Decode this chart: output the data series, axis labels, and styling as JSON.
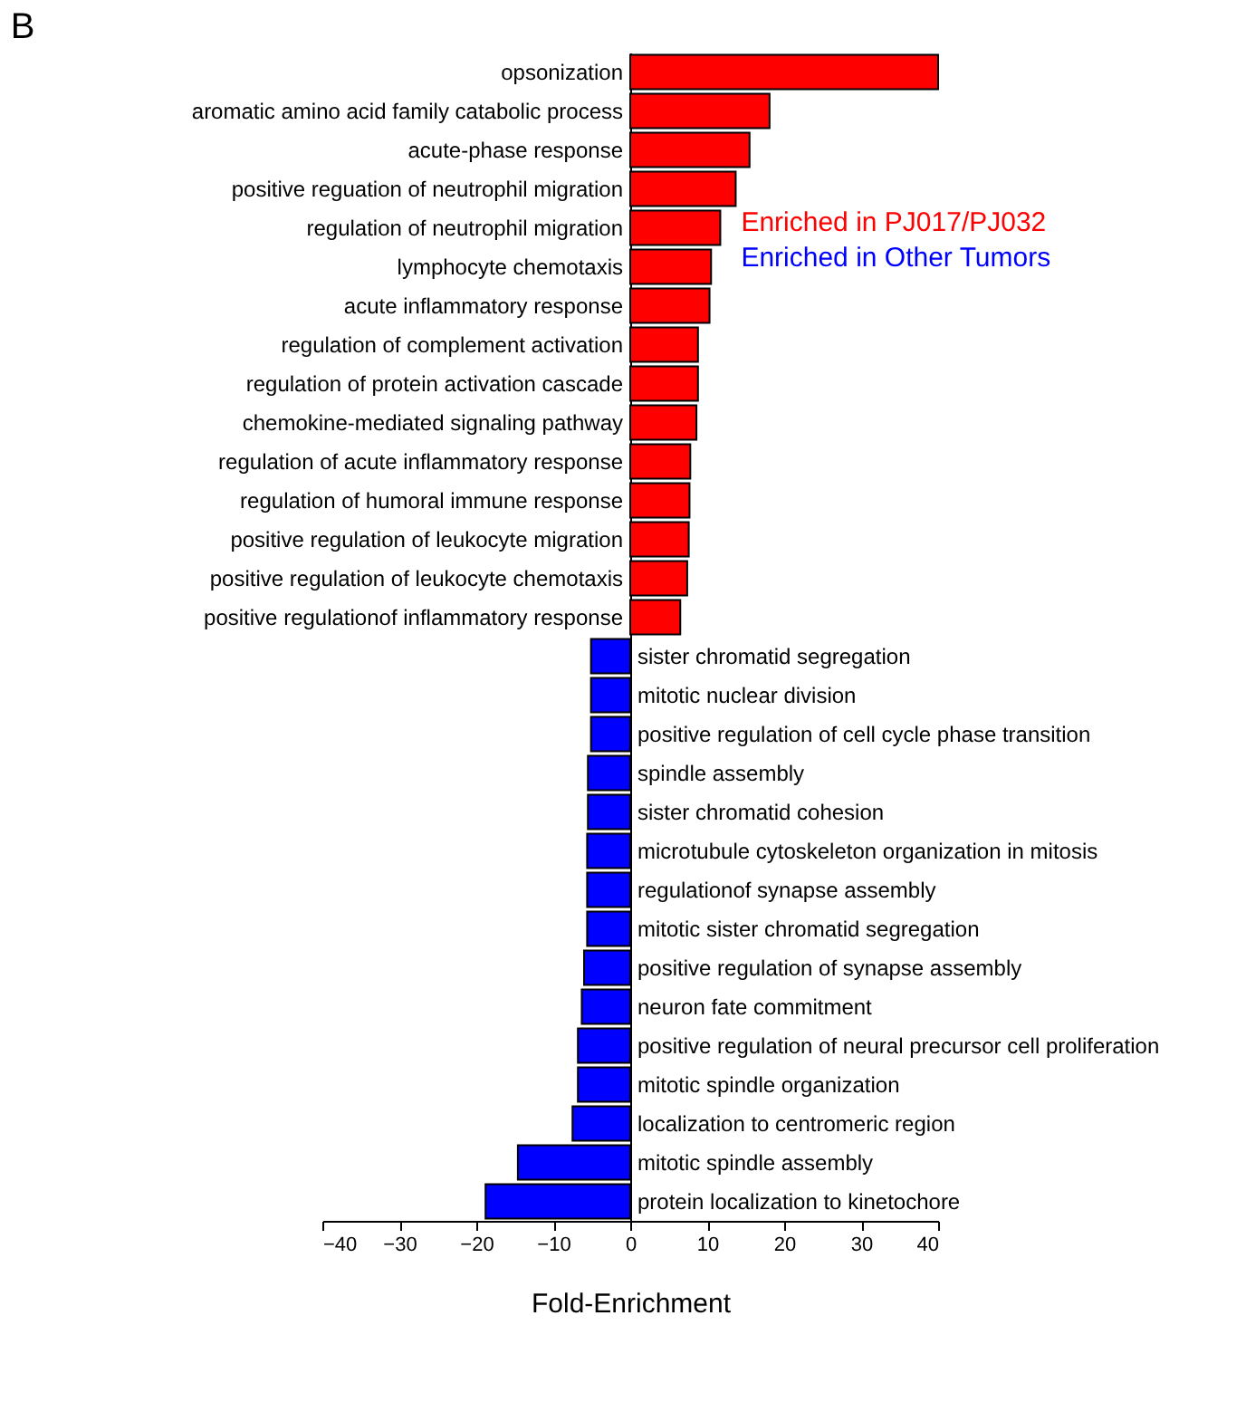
{
  "chart_data": {
    "type": "bar",
    "orientation": "horizontal",
    "title": "B",
    "xlabel": "Fold-Enrichment",
    "categories": [
      "opsonization",
      "aromatic amino acid family catabolic process",
      "acute-phase response",
      "positive reguation of neutrophil migration",
      "regulation of neutrophil migration",
      "lymphocyte chemotaxis",
      "acute inflammatory response",
      "regulation of complement activation",
      "regulation of protein activation cascade",
      "chemokine-mediated signaling pathway",
      "regulation of acute inflammatory response",
      "regulation of humoral immune response",
      "positive regulation of leukocyte migration",
      "positive regulation of leukocyte chemotaxis",
      "positive regulationof inflammatory response",
      "sister chromatid segregation",
      "mitotic nuclear division",
      "positive regulation of cell cycle phase transition",
      "spindle assembly",
      "sister chromatid cohesion",
      "microtubule cytoskeleton organization in mitosis",
      "regulationof synapse assembly",
      "mitotic sister chromatid segregation",
      "positive regulation of synapse assembly",
      "neuron fate commitment",
      "positive regulation of neural precursor cell proliferation",
      "mitotic spindle organization",
      "localization to centromeric region",
      "mitotic spindle assembly",
      "protein localization to kinetochore"
    ],
    "series": [
      {
        "name": "Enriched in PJ017/PJ032",
        "color": "#ff0000",
        "values": [
          40,
          18.1,
          15.5,
          13.7,
          11.7,
          10.5,
          10.3,
          8.8,
          8.8,
          8.6,
          7.8,
          7.7,
          7.6,
          7.4,
          6.5,
          null,
          null,
          null,
          null,
          null,
          null,
          null,
          null,
          null,
          null,
          null,
          null,
          null,
          null,
          null
        ]
      },
      {
        "name": "Enriched in Other Tumors",
        "color": "#0000ff",
        "values": [
          null,
          null,
          null,
          null,
          null,
          null,
          null,
          null,
          null,
          null,
          null,
          null,
          null,
          null,
          null,
          -5.1,
          -5.1,
          -5.1,
          -5.5,
          -5.5,
          -5.6,
          -5.6,
          -5.6,
          -6.0,
          -6.3,
          -6.8,
          -6.8,
          -7.5,
          -14.6,
          -18.8
        ]
      }
    ],
    "xlim": [
      -40,
      40
    ],
    "xticks": [
      -40,
      -30,
      -20,
      -10,
      0,
      10,
      20,
      30,
      40
    ],
    "grid": false,
    "legend": "right"
  }
}
